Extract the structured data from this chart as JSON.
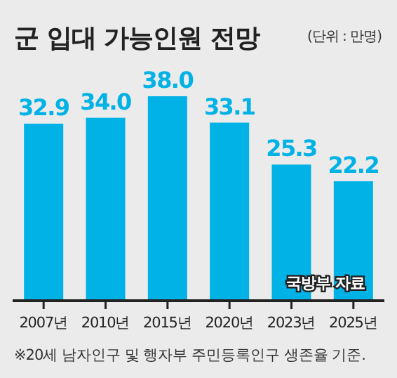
{
  "chart_data": {
    "type": "bar",
    "title": "군 입대 가능인원 전망",
    "subtitle": "(단위 : 만명)",
    "categories": [
      "2007년",
      "2010년",
      "2015년",
      "2020년",
      "2023년",
      "2025년"
    ],
    "values": [
      32.9,
      34.0,
      38.0,
      33.1,
      25.3,
      22.2
    ],
    "value_labels": [
      "32.9",
      "34.0",
      "38.0",
      "33.1",
      "25.3",
      "22.2"
    ],
    "color": "#00b2e6",
    "annotations": [
      "국방부 자료",
      "※20세 남자인구 및 행자부 주민등록인구 생존율 기준."
    ]
  }
}
